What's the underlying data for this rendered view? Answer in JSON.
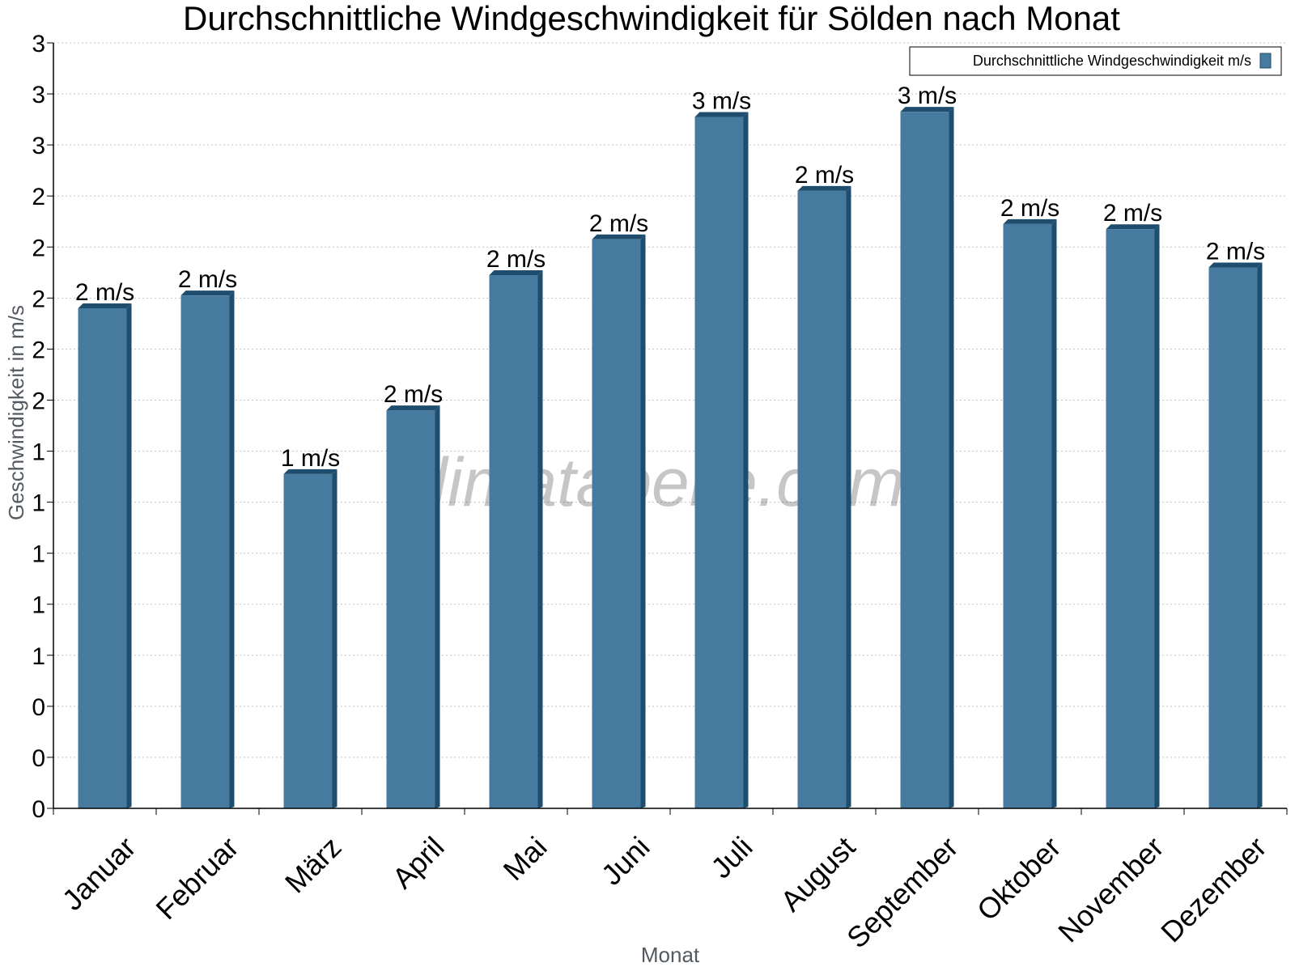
{
  "chart_data": {
    "type": "bar",
    "title": "Durchschnittliche Windgeschwindigkeit für Sölden nach Monat",
    "xlabel": "Monat",
    "ylabel": "Geschwindigkeit in m/s",
    "legend": {
      "label": "Durchschnittliche Windgeschwindigkeit m/s",
      "placement": "top-right"
    },
    "watermark": "klimatabelle.com",
    "ylim": [
      0,
      3.0
    ],
    "yticks": [
      0,
      0.2,
      0.4,
      0.6,
      0.8,
      1.0,
      1.2,
      1.4,
      1.6,
      1.8,
      2.0,
      2.2,
      2.4,
      2.6,
      2.8,
      3.0
    ],
    "ytick_labels": [
      "0",
      "0",
      "0",
      "1",
      "1",
      "1",
      "1",
      "1",
      "2",
      "2",
      "2",
      "2",
      "2",
      "3",
      "3",
      "3"
    ],
    "grid": true,
    "bar_color": "#467a9e",
    "bar_side_color": "#1f4d6e",
    "categories": [
      "Januar",
      "Februar",
      "März",
      "April",
      "Mai",
      "Juni",
      "Juli",
      "August",
      "September",
      "Oktober",
      "November",
      "Dezember"
    ],
    "values": [
      1.96,
      2.01,
      1.31,
      1.56,
      2.09,
      2.23,
      2.71,
      2.42,
      2.73,
      2.29,
      2.27,
      2.12
    ],
    "data_labels": [
      "2 m/s",
      "2 m/s",
      "1 m/s",
      "2 m/s",
      "2 m/s",
      "2 m/s",
      "3 m/s",
      "2 m/s",
      "3 m/s",
      "2 m/s",
      "2 m/s",
      "2 m/s"
    ]
  }
}
